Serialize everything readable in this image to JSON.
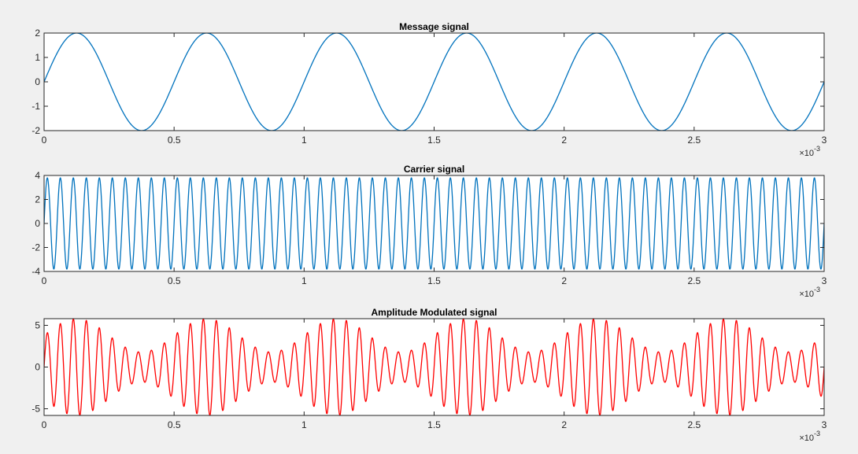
{
  "figure": {
    "background": "#f0f0f0",
    "axes_background": "#ffffff"
  },
  "chart_data": [
    {
      "type": "line",
      "title": "Message signal",
      "xlabel": "",
      "ylabel": "",
      "xlim": [
        0,
        0.003
      ],
      "ylim": [
        -2,
        2
      ],
      "x_ticks": [
        0,
        0.0005,
        0.001,
        0.0015,
        0.002,
        0.0025,
        0.003
      ],
      "x_tick_labels": [
        "0",
        "0.5",
        "1",
        "1.5",
        "2",
        "2.5",
        "3"
      ],
      "x_exponent_label": "×10",
      "x_exponent": "-3",
      "y_ticks": [
        2,
        1,
        0,
        -1,
        -2
      ],
      "y_tick_labels": [
        "2",
        "1",
        "0",
        "-1",
        "-2"
      ],
      "grid": false,
      "series": [
        {
          "formula": "A*sin(2*pi*f*t)",
          "amplitude": 2,
          "frequency_hz": 2000,
          "color": "#0072bd"
        }
      ]
    },
    {
      "type": "line",
      "title": "Carrier signal",
      "xlabel": "",
      "ylabel": "",
      "xlim": [
        0,
        0.003
      ],
      "ylim": [
        -4,
        4
      ],
      "x_ticks": [
        0,
        0.0005,
        0.001,
        0.0015,
        0.002,
        0.0025,
        0.003
      ],
      "x_tick_labels": [
        "0",
        "0.5",
        "1",
        "1.5",
        "2",
        "2.5",
        "3"
      ],
      "x_exponent_label": "×10",
      "x_exponent": "-3",
      "y_ticks": [
        4,
        2,
        0,
        -2,
        -4
      ],
      "y_tick_labels": [
        "4",
        "2",
        "0",
        "-2",
        "-4"
      ],
      "grid": false,
      "series": [
        {
          "formula": "A*sin(2*pi*f*t)",
          "amplitude": 3.8,
          "frequency_hz": 20000,
          "color": "#0072bd"
        }
      ]
    },
    {
      "type": "line",
      "title": "Amplitude Modulated signal",
      "xlabel": "",
      "ylabel": "",
      "xlim": [
        0,
        0.003
      ],
      "ylim": [
        -5.8,
        5.8
      ],
      "x_ticks": [
        0,
        0.0005,
        0.001,
        0.0015,
        0.002,
        0.0025,
        0.003
      ],
      "x_tick_labels": [
        "0",
        "0.5",
        "1",
        "1.5",
        "2",
        "2.5",
        "3"
      ],
      "x_exponent_label": "×10",
      "x_exponent": "-3",
      "y_ticks": [
        5,
        0,
        -5
      ],
      "y_tick_labels": [
        "5",
        "0",
        "-5"
      ],
      "grid": false,
      "series": [
        {
          "formula": "(Ac + Am*sin(2*pi*fm*t))*sin(2*pi*fc*t)",
          "carrier_amplitude": 3.8,
          "message_amplitude": 2,
          "message_frequency_hz": 2000,
          "carrier_frequency_hz": 20000,
          "color": "#ff0000"
        }
      ]
    }
  ]
}
